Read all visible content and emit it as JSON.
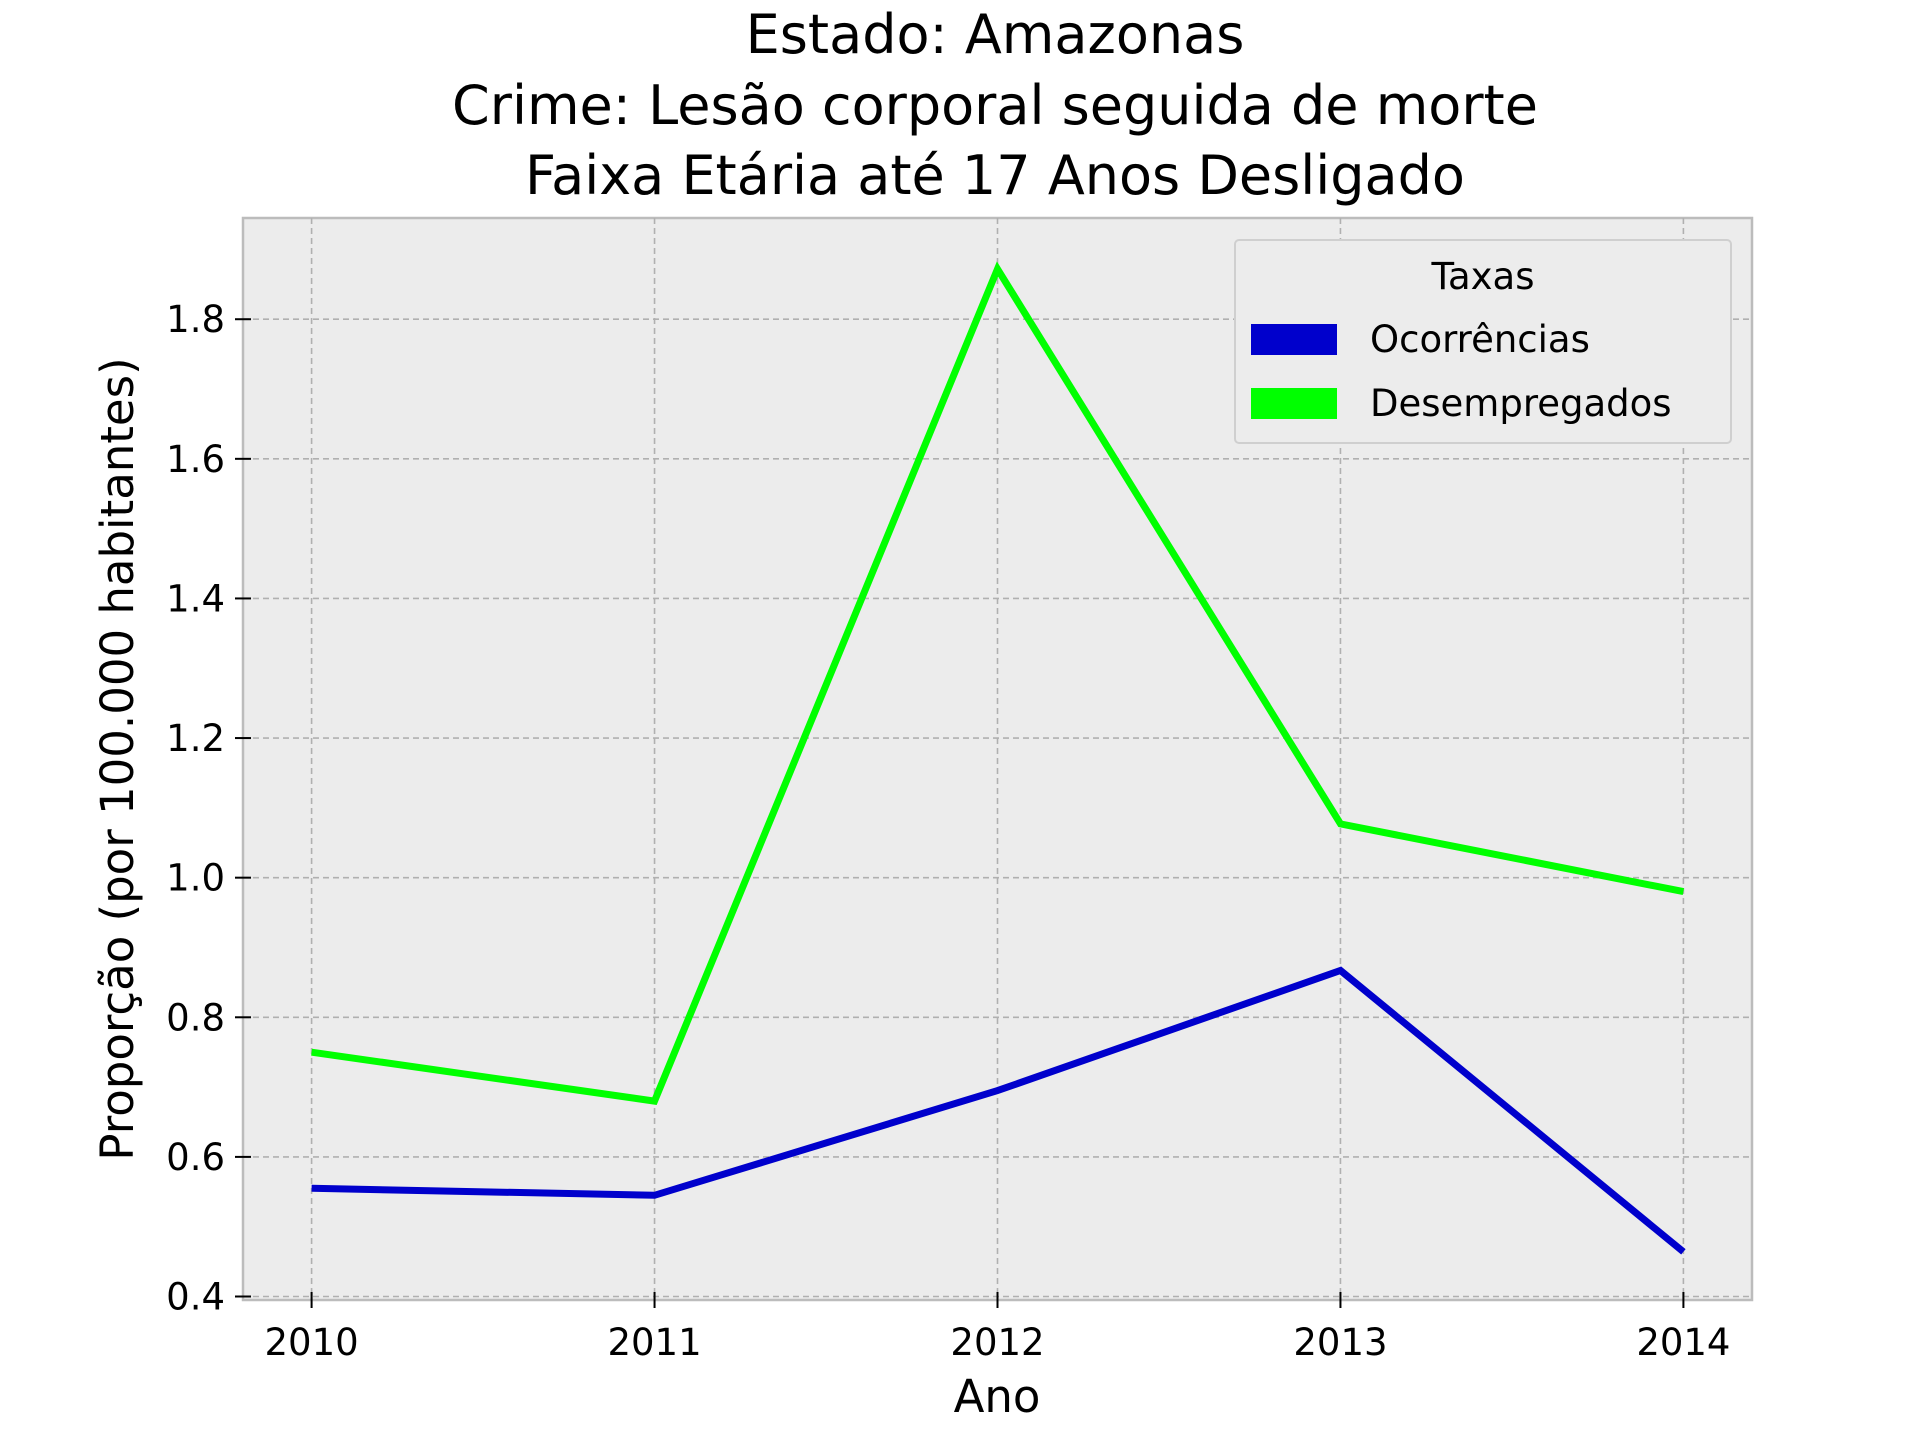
{
  "chart_data": {
    "type": "line",
    "title_lines": [
      "Estado: Amazonas",
      "Crime: Lesão corporal seguida de morte",
      "Faixa Etária até 17 Anos   Desligado"
    ],
    "xlabel": "Ano",
    "ylabel": "Proporção (por 100.000 habitantes)",
    "x": [
      2010,
      2011,
      2012,
      2013,
      2014
    ],
    "x_tick_labels": [
      "2010",
      "2011",
      "2012",
      "2013",
      "2014"
    ],
    "xlim": [
      2009.8,
      2014.2
    ],
    "ylim": [
      0.395,
      1.945
    ],
    "y_ticks": [
      0.4,
      0.6,
      0.8,
      1.0,
      1.2,
      1.4,
      1.6,
      1.8
    ],
    "y_tick_labels": [
      "0.4",
      "0.6",
      "0.8",
      "1.0",
      "1.2",
      "1.4",
      "1.6",
      "1.8"
    ],
    "grid": true,
    "background": "#ececec",
    "legend": {
      "title": "Taxas",
      "placement": "top-right"
    },
    "series": [
      {
        "name": "Ocorrências",
        "color": "#0000cc",
        "values": [
          0.555,
          0.545,
          0.695,
          0.867,
          0.464
        ]
      },
      {
        "name": "Desempregados",
        "color": "#00ff00",
        "values": [
          0.75,
          0.68,
          1.872,
          1.077,
          0.98
        ]
      }
    ]
  }
}
